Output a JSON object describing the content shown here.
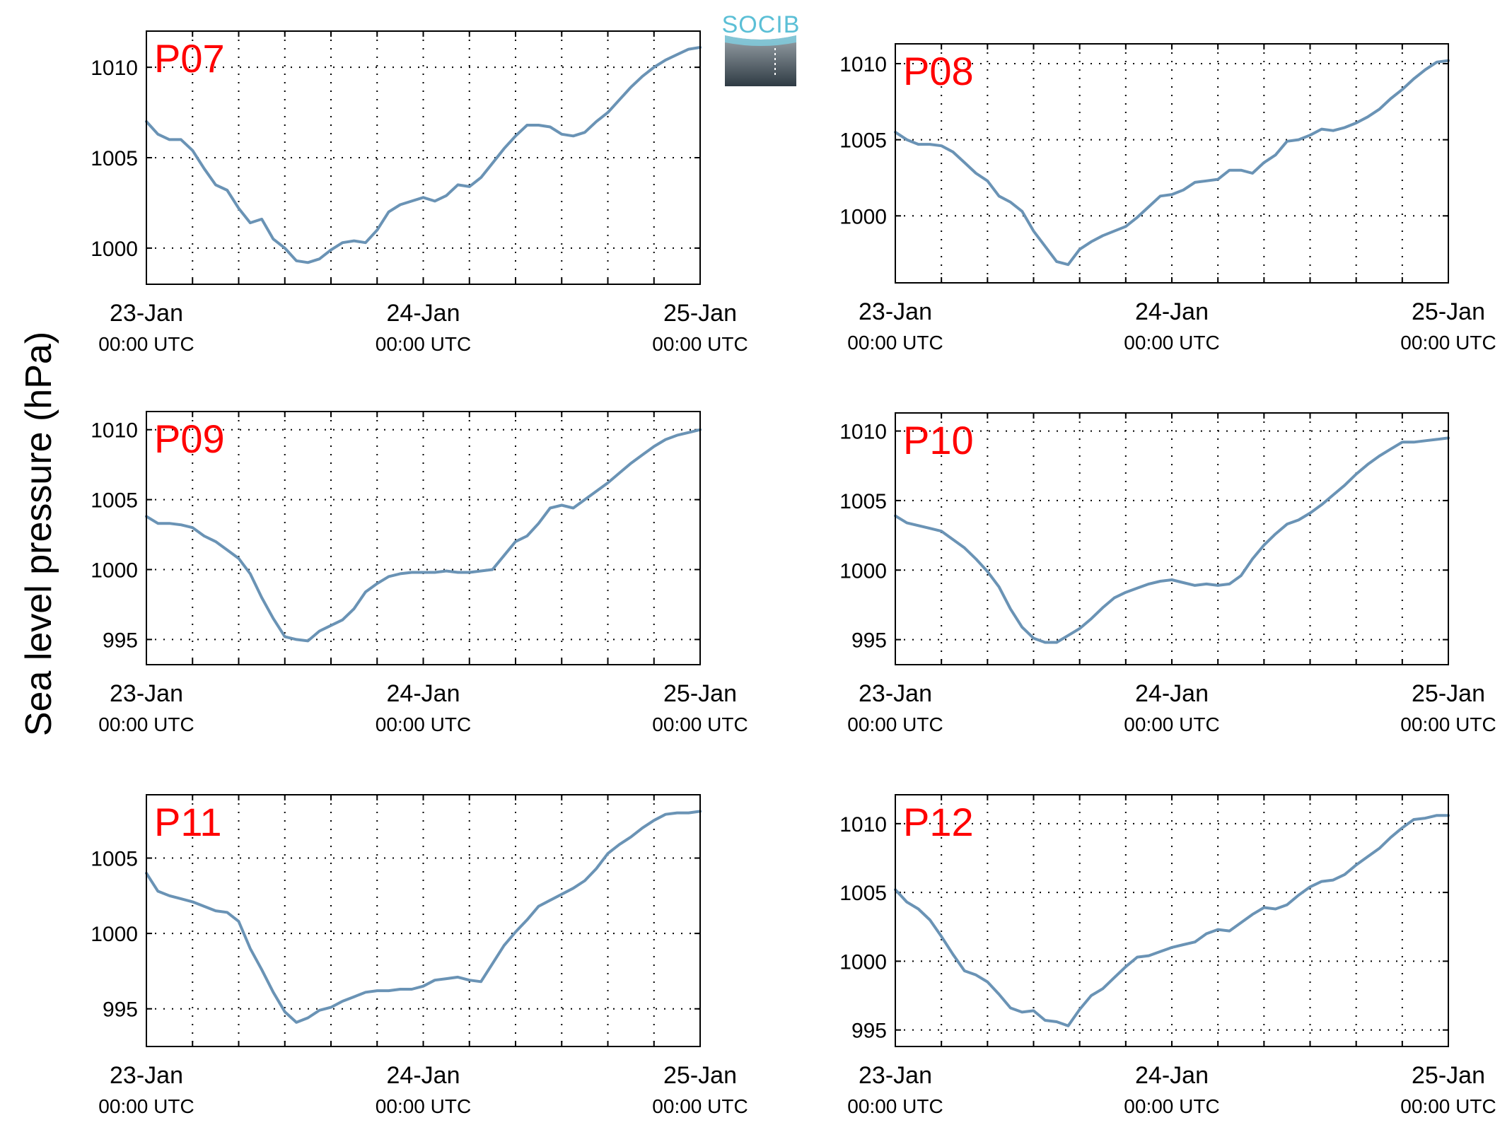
{
  "ylabel": "Sea level pressure (hPa)",
  "logo": {
    "text": "SOCIB"
  },
  "colors": {
    "line": "#6a93b5",
    "label": "#ff0000",
    "grid": "#000000"
  },
  "chart_data": [
    {
      "type": "line",
      "label": "P07",
      "ylim": [
        998,
        1012
      ],
      "yticks": [
        1000,
        1005,
        1010
      ],
      "xlim": [
        0,
        48
      ],
      "grid": true,
      "xticks": [
        {
          "x": 0,
          "line1": "23-Jan",
          "line2": "00:00 UTC"
        },
        {
          "x": 24,
          "line1": "24-Jan",
          "line2": "00:00 UTC"
        },
        {
          "x": 48,
          "line1": "25-Jan",
          "line2": "00:00 UTC"
        }
      ],
      "x": [
        0,
        1,
        2,
        3,
        4,
        5,
        6,
        7,
        8,
        9,
        10,
        11,
        12,
        13,
        14,
        15,
        16,
        17,
        18,
        19,
        20,
        21,
        22,
        23,
        24,
        25,
        26,
        27,
        28,
        29,
        30,
        31,
        32,
        33,
        34,
        35,
        36,
        37,
        38,
        39,
        40,
        41,
        42,
        43,
        44,
        45,
        46,
        47,
        48
      ],
      "y": [
        1007.0,
        1006.3,
        1006.0,
        1006.0,
        1005.4,
        1004.4,
        1003.5,
        1003.2,
        1002.2,
        1001.4,
        1001.6,
        1000.5,
        1000.0,
        999.3,
        999.2,
        999.4,
        999.9,
        1000.3,
        1000.4,
        1000.3,
        1001.0,
        1002.0,
        1002.4,
        1002.6,
        1002.8,
        1002.6,
        1002.9,
        1003.5,
        1003.4,
        1003.9,
        1004.7,
        1005.5,
        1006.2,
        1006.8,
        1006.8,
        1006.7,
        1006.3,
        1006.2,
        1006.4,
        1007.0,
        1007.5,
        1008.2,
        1008.9,
        1009.5,
        1010.0,
        1010.4,
        1010.7,
        1011.0,
        1011.1
      ]
    },
    {
      "type": "line",
      "label": "P08",
      "ylim": [
        995.6,
        1011.3
      ],
      "yticks": [
        1000,
        1005,
        1010
      ],
      "xlim": [
        0,
        48
      ],
      "grid": true,
      "xticks": [
        {
          "x": 0,
          "line1": "23-Jan",
          "line2": "00:00 UTC"
        },
        {
          "x": 24,
          "line1": "24-Jan",
          "line2": "00:00 UTC"
        },
        {
          "x": 48,
          "line1": "25-Jan",
          "line2": "00:00 UTC"
        }
      ],
      "x": [
        0,
        1,
        2,
        3,
        4,
        5,
        6,
        7,
        8,
        9,
        10,
        11,
        12,
        13,
        14,
        15,
        16,
        17,
        18,
        19,
        20,
        21,
        22,
        23,
        24,
        25,
        26,
        27,
        28,
        29,
        30,
        31,
        32,
        33,
        34,
        35,
        36,
        37,
        38,
        39,
        40,
        41,
        42,
        43,
        44,
        45,
        46,
        47,
        48
      ],
      "y": [
        1005.5,
        1005.0,
        1004.7,
        1004.7,
        1004.6,
        1004.2,
        1003.5,
        1002.8,
        1002.3,
        1001.3,
        1000.9,
        1000.3,
        999.0,
        998.0,
        997.0,
        996.8,
        997.8,
        998.3,
        998.7,
        999.0,
        999.3,
        999.9,
        1000.6,
        1001.3,
        1001.4,
        1001.7,
        1002.2,
        1002.3,
        1002.4,
        1003.0,
        1003.0,
        1002.8,
        1003.5,
        1004.0,
        1004.9,
        1005.0,
        1005.3,
        1005.7,
        1005.6,
        1005.8,
        1006.1,
        1006.5,
        1007.0,
        1007.7,
        1008.3,
        1009.0,
        1009.6,
        1010.1,
        1010.2
      ]
    },
    {
      "type": "line",
      "label": "P09",
      "ylim": [
        993.2,
        1011.3
      ],
      "yticks": [
        995,
        1000,
        1005,
        1010
      ],
      "xlim": [
        0,
        48
      ],
      "grid": true,
      "xticks": [
        {
          "x": 0,
          "line1": "23-Jan",
          "line2": "00:00 UTC"
        },
        {
          "x": 24,
          "line1": "24-Jan",
          "line2": "00:00 UTC"
        },
        {
          "x": 48,
          "line1": "25-Jan",
          "line2": "00:00 UTC"
        }
      ],
      "x": [
        0,
        1,
        2,
        3,
        4,
        5,
        6,
        7,
        8,
        9,
        10,
        11,
        12,
        13,
        14,
        15,
        16,
        17,
        18,
        19,
        20,
        21,
        22,
        23,
        24,
        25,
        26,
        27,
        28,
        29,
        30,
        31,
        32,
        33,
        34,
        35,
        36,
        37,
        38,
        39,
        40,
        41,
        42,
        43,
        44,
        45,
        46,
        47,
        48
      ],
      "y": [
        1003.8,
        1003.3,
        1003.3,
        1003.2,
        1003.0,
        1002.4,
        1002.0,
        1001.4,
        1000.8,
        999.7,
        998.0,
        996.5,
        995.2,
        995.0,
        994.9,
        995.6,
        996.0,
        996.4,
        997.2,
        998.4,
        999.0,
        999.5,
        999.7,
        999.8,
        999.8,
        999.8,
        999.9,
        999.8,
        999.8,
        999.9,
        1000.0,
        1001.0,
        1002.0,
        1002.4,
        1003.3,
        1004.4,
        1004.6,
        1004.4,
        1005.0,
        1005.6,
        1006.2,
        1006.9,
        1007.6,
        1008.2,
        1008.8,
        1009.3,
        1009.6,
        1009.8,
        1010.0
      ]
    },
    {
      "type": "line",
      "label": "P10",
      "ylim": [
        993.2,
        1011.3
      ],
      "yticks": [
        995,
        1000,
        1005,
        1010
      ],
      "xlim": [
        0,
        48
      ],
      "grid": true,
      "xticks": [
        {
          "x": 0,
          "line1": "23-Jan",
          "line2": "00:00 UTC"
        },
        {
          "x": 24,
          "line1": "24-Jan",
          "line2": "00:00 UTC"
        },
        {
          "x": 48,
          "line1": "25-Jan",
          "line2": "00:00 UTC"
        }
      ],
      "x": [
        0,
        1,
        2,
        3,
        4,
        5,
        6,
        7,
        8,
        9,
        10,
        11,
        12,
        13,
        14,
        15,
        16,
        17,
        18,
        19,
        20,
        21,
        22,
        23,
        24,
        25,
        26,
        27,
        28,
        29,
        30,
        31,
        32,
        33,
        34,
        35,
        36,
        37,
        38,
        39,
        40,
        41,
        42,
        43,
        44,
        45,
        46,
        47,
        48
      ],
      "y": [
        1003.9,
        1003.4,
        1003.2,
        1003.0,
        1002.8,
        1002.2,
        1001.6,
        1000.8,
        999.9,
        998.8,
        997.2,
        995.9,
        995.1,
        994.8,
        994.8,
        995.3,
        995.8,
        996.5,
        997.3,
        998.0,
        998.4,
        998.7,
        999.0,
        999.2,
        999.3,
        999.1,
        998.9,
        999.0,
        998.9,
        999.0,
        999.6,
        1000.8,
        1001.8,
        1002.6,
        1003.3,
        1003.6,
        1004.1,
        1004.7,
        1005.4,
        1006.1,
        1006.9,
        1007.6,
        1008.2,
        1008.7,
        1009.2,
        1009.2,
        1009.3,
        1009.4,
        1009.5
      ]
    },
    {
      "type": "line",
      "label": "P11",
      "ylim": [
        992.5,
        1009.2
      ],
      "yticks": [
        995,
        1000,
        1005
      ],
      "xlim": [
        0,
        48
      ],
      "grid": true,
      "xticks": [
        {
          "x": 0,
          "line1": "23-Jan",
          "line2": "00:00 UTC"
        },
        {
          "x": 24,
          "line1": "24-Jan",
          "line2": "00:00 UTC"
        },
        {
          "x": 48,
          "line1": "25-Jan",
          "line2": "00:00 UTC"
        }
      ],
      "x": [
        0,
        1,
        2,
        3,
        4,
        5,
        6,
        7,
        8,
        9,
        10,
        11,
        12,
        13,
        14,
        15,
        16,
        17,
        18,
        19,
        20,
        21,
        22,
        23,
        24,
        25,
        26,
        27,
        28,
        29,
        30,
        31,
        32,
        33,
        34,
        35,
        36,
        37,
        38,
        39,
        40,
        41,
        42,
        43,
        44,
        45,
        46,
        47,
        48
      ],
      "y": [
        1004.0,
        1002.8,
        1002.5,
        1002.3,
        1002.1,
        1001.8,
        1001.5,
        1001.4,
        1000.8,
        999.0,
        997.6,
        996.1,
        994.8,
        994.1,
        994.4,
        994.9,
        995.1,
        995.5,
        995.8,
        996.1,
        996.2,
        996.2,
        996.3,
        996.3,
        996.5,
        996.9,
        997.0,
        997.1,
        996.9,
        996.8,
        998.0,
        999.2,
        1000.1,
        1000.9,
        1001.8,
        1002.2,
        1002.6,
        1003.0,
        1003.5,
        1004.3,
        1005.3,
        1005.9,
        1006.4,
        1007.0,
        1007.5,
        1007.9,
        1008.0,
        1008.0,
        1008.1
      ]
    },
    {
      "type": "line",
      "label": "P12",
      "ylim": [
        993.8,
        1012.1
      ],
      "yticks": [
        995,
        1000,
        1005,
        1010
      ],
      "xlim": [
        0,
        48
      ],
      "grid": true,
      "xticks": [
        {
          "x": 0,
          "line1": "23-Jan",
          "line2": "00:00 UTC"
        },
        {
          "x": 24,
          "line1": "24-Jan",
          "line2": "00:00 UTC"
        },
        {
          "x": 48,
          "line1": "25-Jan",
          "line2": "00:00 UTC"
        }
      ],
      "x": [
        0,
        1,
        2,
        3,
        4,
        5,
        6,
        7,
        8,
        9,
        10,
        11,
        12,
        13,
        14,
        15,
        16,
        17,
        18,
        19,
        20,
        21,
        22,
        23,
        24,
        25,
        26,
        27,
        28,
        29,
        30,
        31,
        32,
        33,
        34,
        35,
        36,
        37,
        38,
        39,
        40,
        41,
        42,
        43,
        44,
        45,
        46,
        47,
        48
      ],
      "y": [
        1005.2,
        1004.3,
        1003.8,
        1003.0,
        1001.8,
        1000.5,
        999.3,
        999.0,
        998.5,
        997.6,
        996.6,
        996.3,
        996.4,
        995.7,
        995.6,
        995.3,
        996.5,
        997.5,
        998.0,
        998.8,
        999.6,
        1000.3,
        1000.4,
        1000.7,
        1001.0,
        1001.2,
        1001.4,
        1002.0,
        1002.3,
        1002.2,
        1002.8,
        1003.4,
        1003.9,
        1003.8,
        1004.1,
        1004.8,
        1005.4,
        1005.8,
        1005.9,
        1006.3,
        1007.0,
        1007.6,
        1008.2,
        1009.0,
        1009.7,
        1010.3,
        1010.4,
        1010.6,
        1010.6
      ]
    }
  ]
}
